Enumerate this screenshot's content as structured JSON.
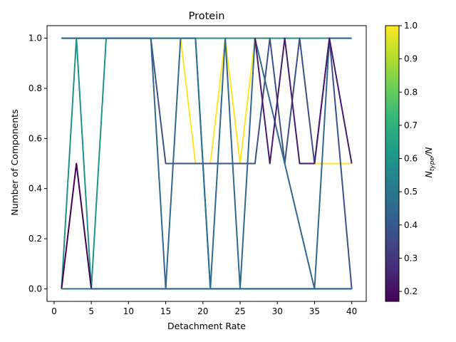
{
  "chart_data": {
    "type": "line",
    "title": "Protein",
    "xlabel": "Detachment Rate",
    "ylabel": "Number of Components",
    "xlim": [
      -0.95,
      41.95
    ],
    "ylim": [
      -0.05,
      1.05
    ],
    "xticks": [
      0,
      5,
      10,
      15,
      20,
      25,
      30,
      35,
      40
    ],
    "yticks": [
      0.0,
      0.2,
      0.4,
      0.6,
      0.8,
      1.0
    ],
    "xtick_labels": [
      "0",
      "5",
      "10",
      "15",
      "20",
      "25",
      "30",
      "35",
      "40"
    ],
    "ytick_labels": [
      "0.0",
      "0.2",
      "0.4",
      "0.6",
      "0.8",
      "1.0"
    ],
    "grid": false,
    "colormap": "viridis",
    "colorbar": {
      "label": "N_type/N",
      "label_main": "N",
      "label_sub": "type",
      "label_tail": "/N",
      "range": [
        0.17,
        1.0
      ],
      "ticks": [
        0.2,
        0.3,
        0.4,
        0.5,
        0.6,
        0.7,
        0.8,
        0.9,
        1.0
      ],
      "tick_labels": [
        "0.2",
        "0.3",
        "0.4",
        "0.5",
        "0.6",
        "0.7",
        "0.8",
        "0.9",
        "1.0"
      ]
    },
    "series": [
      {
        "color": "#fde725",
        "x": [
          1,
          13,
          15,
          17,
          19,
          21,
          23,
          25,
          27,
          29,
          31,
          33,
          35,
          37,
          40
        ],
        "y": [
          1,
          1,
          1,
          1,
          0.5,
          0.5,
          1,
          0.5,
          1,
          1,
          0.5,
          1,
          0.5,
          0.5,
          0.5
        ]
      },
      {
        "color": "#21918c",
        "x": [
          1,
          3,
          5,
          7,
          9,
          40
        ],
        "y": [
          0,
          1,
          0,
          1,
          1,
          1
        ]
      },
      {
        "color": "#440154",
        "x": [
          1,
          3,
          5,
          40
        ],
        "y": [
          0,
          0.5,
          0,
          0
        ]
      },
      {
        "color": "#3b528b",
        "x": [
          1,
          13,
          15,
          27,
          29,
          31,
          33,
          35,
          37,
          40
        ],
        "y": [
          1,
          1,
          0.5,
          0.5,
          1,
          0.5,
          1,
          0.5,
          1,
          0
        ]
      },
      {
        "color": "#31688e",
        "x": [
          1,
          13,
          15,
          17,
          19,
          21,
          23,
          25,
          27,
          35,
          37,
          40
        ],
        "y": [
          1,
          1,
          0,
          1,
          1,
          0,
          1,
          0,
          1,
          0,
          1,
          1
        ]
      },
      {
        "color": "#2c718e",
        "x": [
          1,
          19,
          21,
          40
        ],
        "y": [
          1,
          1,
          0,
          0
        ]
      },
      {
        "color": "#481a6c",
        "x": [
          27,
          29,
          31,
          33,
          35,
          37,
          40
        ],
        "y": [
          1,
          0.5,
          1,
          0.5,
          0.5,
          1,
          0.5
        ]
      },
      {
        "color": "#2a788e",
        "x": [
          1,
          21,
          23,
          40
        ],
        "y": [
          0,
          0,
          0,
          0
        ]
      }
    ]
  }
}
